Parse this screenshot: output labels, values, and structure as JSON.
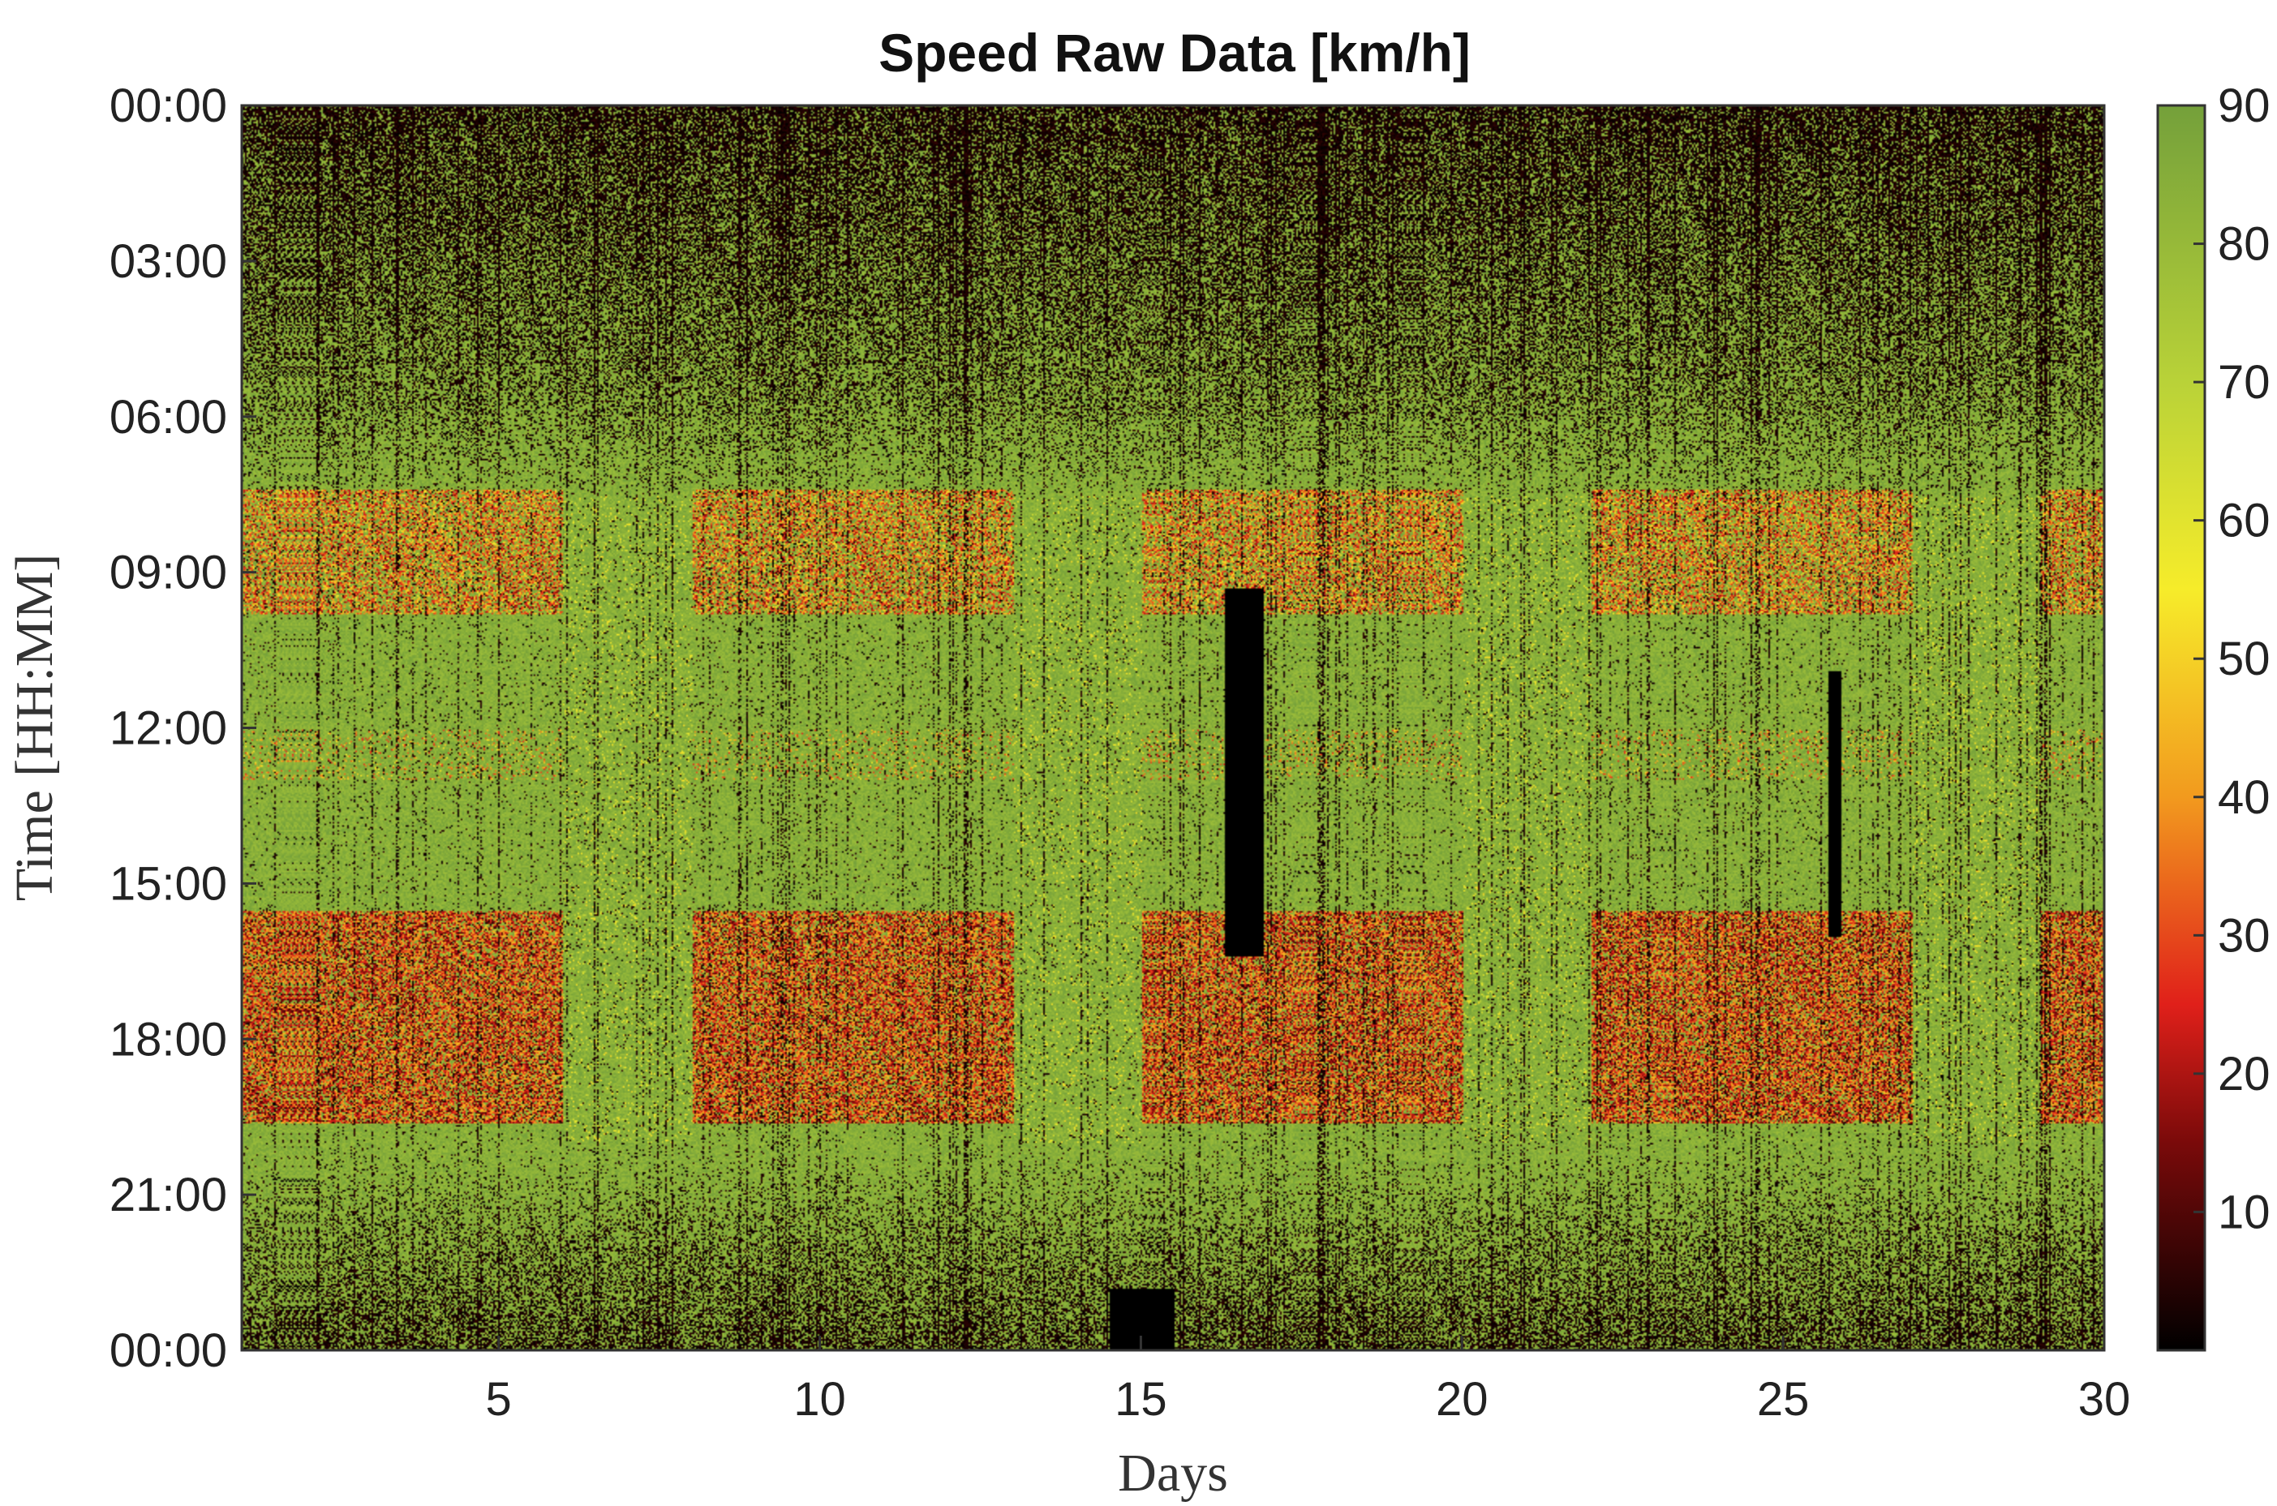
{
  "chart_data": {
    "type": "heatmap",
    "title": "Speed Raw Data [km/h]",
    "xlabel": "Days",
    "ylabel": "Time [HH:MM]",
    "xlim": [
      1,
      30
    ],
    "ylim": [
      "00:00",
      "00:00"
    ],
    "x_ticks": [
      5,
      10,
      15,
      20,
      25,
      30
    ],
    "x_tick_labels": [
      "5",
      "10",
      "15",
      "20",
      "25",
      "30"
    ],
    "y_tick_labels": [
      "00:00",
      "03:00",
      "06:00",
      "09:00",
      "12:00",
      "15:00",
      "18:00",
      "21:00",
      "00:00"
    ],
    "y_tick_hours": [
      0,
      3,
      6,
      9,
      12,
      15,
      18,
      21,
      24
    ],
    "colorbar": {
      "range": [
        0,
        90
      ],
      "ticks": [
        10,
        20,
        30,
        40,
        50,
        60,
        70,
        80,
        90
      ],
      "tick_labels": [
        "10",
        "20",
        "30",
        "40",
        "50",
        "60",
        "70",
        "80",
        "90"
      ],
      "colormap": [
        {
          "value": 0,
          "color": "#000000"
        },
        {
          "value": 15,
          "color": "#7a0a0a"
        },
        {
          "value": 25,
          "color": "#e0201a"
        },
        {
          "value": 40,
          "color": "#f29a1e"
        },
        {
          "value": 55,
          "color": "#f6ec2a"
        },
        {
          "value": 70,
          "color": "#b9d238"
        },
        {
          "value": 90,
          "color": "#74a03a"
        }
      ]
    },
    "patterns": {
      "night_low_speed_hours": [
        0,
        6
      ],
      "morning_congestion_hours": [
        8,
        9.5
      ],
      "evening_congestion_hours": [
        16,
        19
      ],
      "weekend_days": [
        6,
        7,
        13,
        14,
        20,
        21,
        27,
        28
      ],
      "missing_data_blocks": [
        {
          "day_start": 14.5,
          "day_end": 15.5,
          "hour_start": 22.8,
          "hour_end": 24
        },
        {
          "day_start": 16.3,
          "day_end": 16.9,
          "hour_start": 9.3,
          "hour_end": 16.4
        },
        {
          "day_start": 25.7,
          "day_end": 25.9,
          "hour_start": 10.9,
          "hour_end": 16.0
        }
      ]
    },
    "grid": false,
    "legend": "colorbar-right"
  }
}
